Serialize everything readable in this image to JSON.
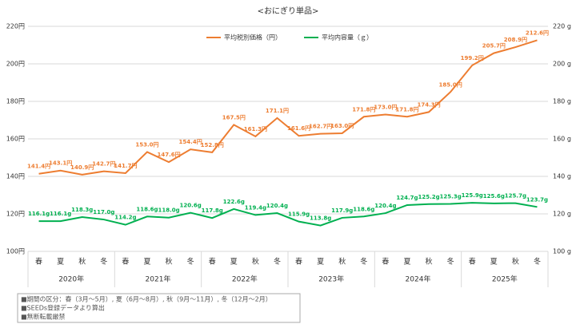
{
  "chart_data": {
    "type": "line",
    "title": "<おにぎり単品>",
    "categories": [
      "春",
      "夏",
      "秋",
      "冬",
      "春",
      "夏",
      "秋",
      "冬",
      "春",
      "夏",
      "秋",
      "冬",
      "春",
      "夏",
      "秋",
      "冬",
      "春",
      "夏",
      "秋",
      "冬",
      "春",
      "夏",
      "秋",
      "冬"
    ],
    "category_groups": [
      "2020年",
      "2021年",
      "2022年",
      "2023年",
      "2024年",
      "2025年"
    ],
    "series": [
      {
        "name": "平均税別価格（円）",
        "color": "#ed7d31",
        "axis": "y",
        "values": [
          141.4,
          143.1,
          140.9,
          142.7,
          141.7,
          153.0,
          147.6,
          154.4,
          152.8,
          167.5,
          161.3,
          171.1,
          161.6,
          162.7,
          163.0,
          171.8,
          173.0,
          171.8,
          174.3,
          185.0,
          199.2,
          205.7,
          208.9,
          212.6
        ],
        "value_labels": [
          "141.4円",
          "143.1円",
          "140.9円",
          "142.7円",
          "141.7円",
          "153.0円",
          "147.6円",
          "154.4円",
          "152.8円",
          "167.5円",
          "161.3円",
          "171.1円",
          "161.6円",
          "162.7円",
          "163.0円",
          "171.8円",
          "173.0円",
          "171.8円",
          "174.3円",
          "185.0円",
          "199.2円",
          "205.7円",
          "208.9円",
          "212.6円"
        ]
      },
      {
        "name": "平均内容量（ｇ）",
        "color": "#00b050",
        "axis": "y2",
        "values": [
          116.1,
          116.1,
          118.3,
          117.0,
          114.2,
          118.6,
          118.0,
          120.6,
          117.8,
          122.6,
          119.4,
          120.4,
          115.9,
          113.8,
          117.9,
          118.6,
          120.4,
          124.7,
          125.2,
          125.3,
          125.9,
          125.6,
          125.7,
          123.7
        ],
        "value_labels": [
          "116.1g",
          "116.1g",
          "118.3g",
          "117.0g",
          "114.2g",
          "118.6g",
          "118.0g",
          "120.6g",
          "117.8g",
          "122.6g",
          "119.4g",
          "120.4g",
          "115.9g",
          "113.8g",
          "117.9g",
          "118.6g",
          "120.4g",
          "124.7g",
          "125.2g",
          "125.3g",
          "125.9g",
          "125.6g",
          "125.7g",
          "123.7g"
        ]
      }
    ],
    "ylim": [
      100,
      220
    ],
    "yticks": [
      {
        "value": 100,
        "label": "100円"
      },
      {
        "value": 120,
        "label": "120円"
      },
      {
        "value": 140,
        "label": "140円"
      },
      {
        "value": 160,
        "label": "160円"
      },
      {
        "value": 180,
        "label": "180円"
      },
      {
        "value": 200,
        "label": "200円"
      },
      {
        "value": 220,
        "label": "220円"
      }
    ],
    "y2lim": [
      100,
      220
    ],
    "y2ticks": [
      {
        "value": 100,
        "label": "100 g"
      },
      {
        "value": 120,
        "label": "120 g"
      },
      {
        "value": 140,
        "label": "140 g"
      },
      {
        "value": 160,
        "label": "160 g"
      },
      {
        "value": 180,
        "label": "180 g"
      },
      {
        "value": 200,
        "label": "200 g"
      },
      {
        "value": 220,
        "label": "220 g"
      }
    ],
    "grid": true,
    "notes": [
      "■期間の区分：春（3月～5月）, 夏（6月～8月）, 秋（9月～11月）, 冬（12月～2月）",
      "■SEEDs登録データより算出",
      "■無断転載厳禁"
    ]
  }
}
